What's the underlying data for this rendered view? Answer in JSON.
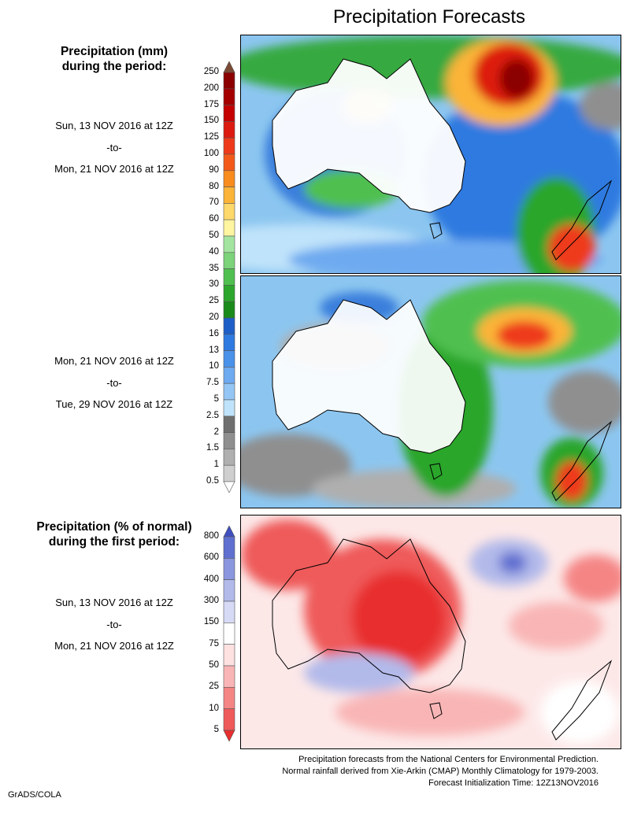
{
  "title": "Precipitation Forecasts",
  "amount_section": {
    "heading_line1": "Precipitation (mm)",
    "heading_line2": "during the period:",
    "period1": {
      "start": "Sun, 13 NOV 2016 at 12Z",
      "sep": "-to-",
      "end": "Mon, 21 NOV 2016 at 12Z"
    },
    "period2": {
      "start": "Mon, 21 NOV 2016 at 12Z",
      "sep": "-to-",
      "end": "Tue, 29 NOV 2016 at 12Z"
    },
    "legend_levels": [
      "250",
      "200",
      "175",
      "150",
      "125",
      "100",
      "90",
      "80",
      "70",
      "60",
      "50",
      "40",
      "35",
      "30",
      "25",
      "20",
      "16",
      "13",
      "10",
      "7.5",
      "5",
      "2.5",
      "2",
      "1.5",
      "1",
      "0.5"
    ],
    "legend_colors": [
      "#7a4a35",
      "#8b0000",
      "#a50000",
      "#c40000",
      "#dd1a10",
      "#ee3a1a",
      "#f35a1a",
      "#f88c1c",
      "#fbb437",
      "#fdd86a",
      "#fff5a0",
      "#a3e5a0",
      "#7cd37a",
      "#4fc04f",
      "#2ca62c",
      "#1a8a1a",
      "#1e5fc7",
      "#2f7ae0",
      "#4a91ea",
      "#6eaaf0",
      "#94c6f5",
      "#bfe3fa",
      "#6f6f6f",
      "#8f8f8f",
      "#afafaf",
      "#cfcfcf",
      "#ffffff"
    ]
  },
  "percent_section": {
    "heading_line1": "Precipitation (% of normal)",
    "heading_line2": "during the first period:",
    "period": {
      "start": "Sun, 13 NOV 2016 at 12Z",
      "sep": "-to-",
      "end": "Mon, 21 NOV 2016 at 12Z"
    },
    "legend_levels": [
      "800",
      "600",
      "400",
      "300",
      "150",
      "75",
      "50",
      "25",
      "10",
      "5"
    ],
    "legend_colors": [
      "#3f4fc0",
      "#6070d0",
      "#8a96de",
      "#b2baea",
      "#d6daf5",
      "#ffffff",
      "#fde0e0",
      "#f9b5b5",
      "#f58585",
      "#ef5a5a",
      "#e82e2e"
    ]
  },
  "footer": {
    "line1": "Precipitation forecasts from the National Centers for Environmental Prediction.",
    "line2": "Normal rainfall derived from Xie-Arkin (CMAP) Monthly Climatology for 1979-2003.",
    "line3": "Forecast Initialization Time: 12Z13NOV2016"
  },
  "credit": "GrADS/COLA"
}
